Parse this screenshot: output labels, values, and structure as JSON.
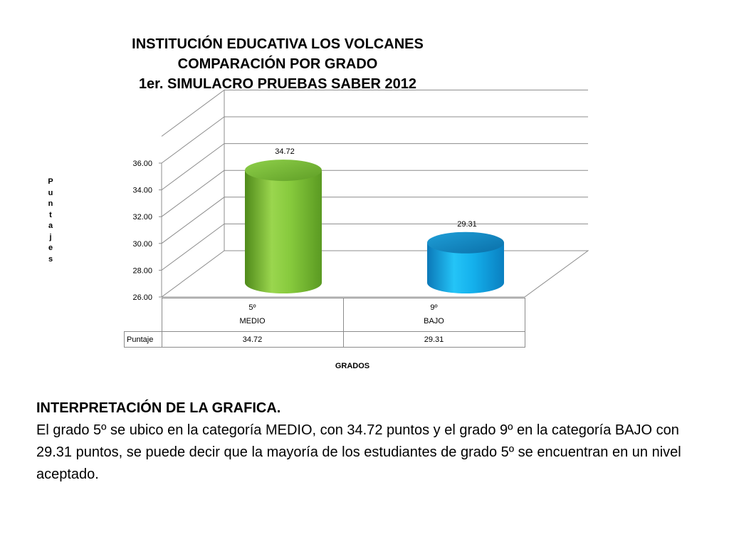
{
  "title": {
    "line1": "INSTITUCIÓN EDUCATIVA LOS VOLCANES",
    "line2": "COMPARACIÓN POR GRADO",
    "line3": "1er. SIMULACRO PRUEBAS SABER 2012"
  },
  "chart_data": {
    "type": "bar",
    "shape": "3d-cylinder",
    "title": "INSTITUCIÓN EDUCATIVA LOS VOLCANES COMPARACIÓN POR GRADO 1er. SIMULACRO PRUEBAS SABER 2012",
    "xlabel": "GRADOS",
    "ylabel": "Puntajes",
    "ylim": [
      26,
      36
    ],
    "yticks": [
      "26.00",
      "28.00",
      "30.00",
      "32.00",
      "34.00",
      "36.00"
    ],
    "grid": true,
    "categories": [
      "5º",
      "9º"
    ],
    "subcategories": [
      "MEDIO",
      "BAJO"
    ],
    "series": [
      {
        "name": "Puntaje",
        "values": [
          34.72,
          29.31
        ],
        "labels": [
          "34.72",
          "29.31"
        ]
      }
    ],
    "bar_colors": [
      "#7cc232",
      "#1aa6e0"
    ]
  },
  "table": {
    "row_label": "Puntaje",
    "values": [
      "34.72",
      "29.31"
    ]
  },
  "interpretation": {
    "heading": "INTERPRETACIÓN DE LA GRAFICA.",
    "text": "El grado 5º se ubico en la categoría MEDIO, con 34.72 puntos y el grado 9º en la categoría BAJO con 29.31 puntos, se puede decir que la mayoría de los estudiantes de grado 5º se encuentran en un nivel aceptado."
  }
}
